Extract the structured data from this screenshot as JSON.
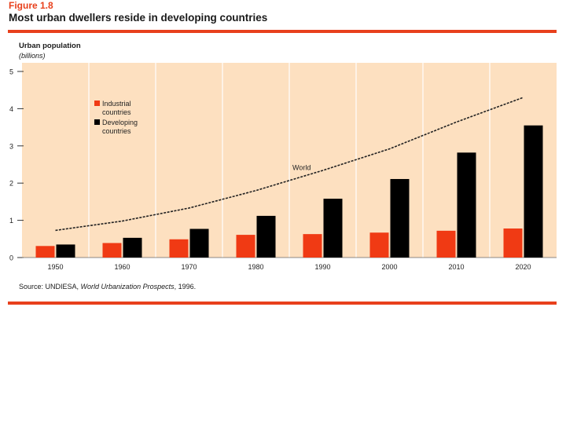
{
  "figure": {
    "label": "Figure 1.8",
    "title": "Most urban dwellers reside in developing countries"
  },
  "colors": {
    "accent": "#e8401c",
    "panel": "#fde0c0",
    "industrial": "#f03a14",
    "developing": "#000000"
  },
  "source": {
    "prefix": "Source:",
    "org": " UNDIESA, ",
    "pub": "World Urbanization Prospects",
    "year": ", 1996."
  },
  "chart_data": {
    "type": "bar",
    "title": "Most urban dwellers reside in developing countries",
    "ylabel": "Urban population",
    "yunit": "(billions)",
    "xlabel": "",
    "ylim": [
      0,
      5
    ],
    "yticks": [
      0,
      1,
      2,
      3,
      4,
      5
    ],
    "categories": [
      "1950",
      "1960",
      "1970",
      "1980",
      "1990",
      "2000",
      "2010",
      "2020"
    ],
    "series": [
      {
        "name": "Industrial countries",
        "legend_lines": [
          "Industrial",
          "countries"
        ],
        "color": "#f03a14",
        "values": [
          0.31,
          0.39,
          0.49,
          0.61,
          0.63,
          0.67,
          0.72,
          0.78
        ]
      },
      {
        "name": "Developing countries",
        "legend_lines": [
          "Developing",
          "countries"
        ],
        "color": "#000000",
        "values": [
          0.35,
          0.53,
          0.77,
          1.12,
          1.58,
          2.11,
          2.82,
          3.55
        ]
      }
    ],
    "line": {
      "name": "World",
      "label": "World",
      "values": [
        0.73,
        0.98,
        1.33,
        1.8,
        2.34,
        2.92,
        3.64,
        4.3
      ]
    }
  }
}
